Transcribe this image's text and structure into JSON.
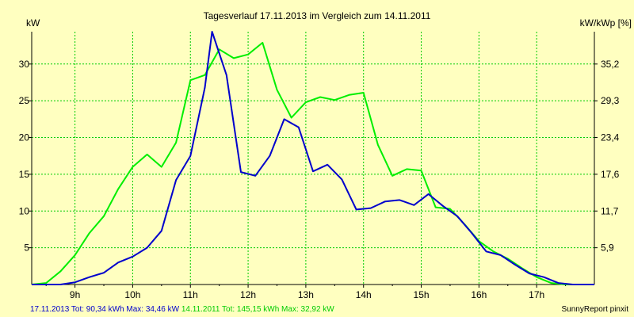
{
  "chart_data": {
    "type": "line",
    "title": "Tagesverlauf 17.11.2013 im Vergleich zum 14.11.2011",
    "ylabel_left": "kW",
    "ylabel_right": "kW/kWp [%]",
    "x_ticks": [
      "9h",
      "10h",
      "11h",
      "12h",
      "13h",
      "14h",
      "15h",
      "16h",
      "17h"
    ],
    "y_ticks_left": [
      "5",
      "10",
      "15",
      "20",
      "25",
      "30"
    ],
    "y_ticks_right": [
      "5,9",
      "11,7",
      "17,6",
      "23,4",
      "29,3",
      "35,2"
    ],
    "xlim": [
      8.25,
      18.0
    ],
    "ylim": [
      0,
      34
    ],
    "grid": true,
    "series": [
      {
        "name": "17.11.2013",
        "color": "#0000cc",
        "x": [
          8.25,
          8.5,
          8.75,
          9.0,
          9.25,
          9.5,
          9.75,
          10.0,
          10.25,
          10.5,
          10.75,
          11.0,
          11.25,
          11.375,
          11.625,
          11.875,
          12.125,
          12.375,
          12.625,
          12.875,
          13.125,
          13.375,
          13.625,
          13.875,
          14.125,
          14.375,
          14.625,
          14.875,
          15.125,
          15.375,
          15.625,
          15.875,
          16.125,
          16.375,
          16.625,
          16.875,
          17.125,
          17.375,
          17.625,
          17.875,
          18.0
        ],
        "y": [
          0,
          0,
          0,
          0.3,
          1,
          1.6,
          3,
          3.8,
          5,
          7.3,
          14.2,
          17.5,
          26.8,
          34.4,
          28.5,
          15.3,
          14.8,
          17.5,
          22.5,
          21.4,
          15.4,
          16.3,
          14.3,
          10.2,
          10.4,
          11.3,
          11.5,
          10.8,
          12.3,
          10.7,
          9.3,
          7,
          4.5,
          4,
          2.7,
          1.5,
          1,
          0.2,
          0,
          0,
          0
        ]
      },
      {
        "name": "14.11.2011",
        "color": "#00ee00",
        "x": [
          8.25,
          8.5,
          8.75,
          9.0,
          9.25,
          9.5,
          9.75,
          10.0,
          10.25,
          10.5,
          10.75,
          11.0,
          11.25,
          11.5,
          11.75,
          12.0,
          12.25,
          12.5,
          12.75,
          13.0,
          13.25,
          13.5,
          13.75,
          14.0,
          14.25,
          14.5,
          14.75,
          15.0,
          15.25,
          15.5,
          15.75,
          16.0,
          16.25,
          16.5,
          16.75,
          17.0,
          17.25,
          17.5,
          17.75,
          18.0
        ],
        "y": [
          0,
          0.2,
          1.8,
          4,
          7,
          9.3,
          13,
          16,
          17.7,
          16,
          19.3,
          27.8,
          28.5,
          32,
          30.8,
          31.3,
          32.9,
          26.5,
          22.7,
          24.8,
          25.5,
          25.1,
          25.8,
          26.1,
          19,
          14.8,
          15.7,
          15.5,
          10.5,
          10.3,
          8.2,
          5.9,
          4.5,
          3.5,
          2.2,
          1,
          0.2,
          0,
          0,
          0
        ]
      }
    ]
  },
  "footer": {
    "series1_label": "17.11.2013 Tot: 90,34 kWh Max: 34,46 kW",
    "series2_label": "14.11.2011 Tot: 145,15 kWh Max: 32,92 kW",
    "brand": "SunnyReport pinxit"
  },
  "colors": {
    "background": "#ffffc0",
    "grid": "#00cc00",
    "axis": "#000000"
  }
}
